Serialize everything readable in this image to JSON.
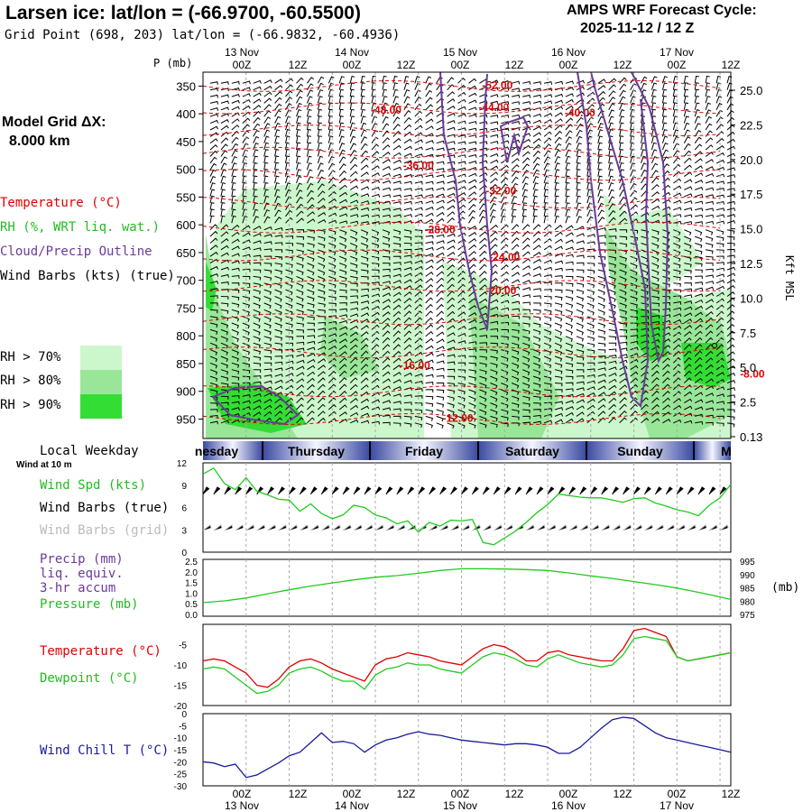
{
  "header": {
    "title": "Larsen ice:  lat/lon = (-66.9700, -60.5500)",
    "grid_point": "Grid Point (698, 203) lat/lon = (-66.9832, -60.4936)",
    "cycle_line1": "AMPS WRF Forecast Cycle:",
    "cycle_line2": "2025-11-12 / 12  Z"
  },
  "left_panel": {
    "model_grid_label": "Model Grid ΔX:",
    "model_grid_value": "8.000 km",
    "legend_temperature": "Temperature (°C)",
    "legend_rh": "RH (%, WRT liq. wat.)",
    "legend_cloud": "Cloud/Precip Outline",
    "legend_wind": "Wind Barbs (kts) (true)",
    "rh_70": "RH > 70%",
    "rh_80": "RH > 80%",
    "rh_90": "RH > 90%"
  },
  "colors": {
    "temperature": "#e00000",
    "rh": "#22bb22",
    "cloud": "#6a3a9a",
    "rh70": "#ccf7cc",
    "rh80": "#99e699",
    "rh90": "#33dd33",
    "windchill": "#1a1a9a",
    "dewpoint": "#1fcc1f"
  },
  "time_axis": {
    "top_dates": [
      "13 Nov",
      "14 Nov",
      "15 Nov",
      "16 Nov",
      "17 Nov"
    ],
    "hour_labels": [
      "00Z",
      "12Z",
      "00Z",
      "12Z",
      "00Z",
      "12Z",
      "00Z",
      "12Z",
      "00Z",
      "12Z"
    ],
    "bottom_dates": [
      "13 Nov",
      "14 Nov",
      "15 Nov",
      "16 Nov",
      "17 Nov"
    ],
    "weekday_header": "Local Weekday",
    "weekdays": [
      "nesday",
      "Thursday",
      "Friday",
      "Saturday",
      "Sunday",
      "M"
    ]
  },
  "chart_data": [
    {
      "type": "area",
      "name": "sounding-panel",
      "ylabel_left": "P (mb)",
      "ylabel_right": "Kft MSL",
      "pressure_ticks": [
        350,
        400,
        450,
        500,
        550,
        600,
        650,
        700,
        750,
        800,
        850,
        900,
        950
      ],
      "height_ticks": [
        "25.0",
        "22.5",
        "20.0",
        "17.5",
        "15.0",
        "12.5",
        "10.0",
        "7.5",
        "5.0",
        "2.5",
        "0.13"
      ],
      "isotherm_labels": [
        {
          "text": "-52.00",
          "hour": 82,
          "p": 355
        },
        {
          "text": "-44.00",
          "hour": 81,
          "p": 395
        },
        {
          "text": "-48.00",
          "hour": 51,
          "p": 400
        },
        {
          "text": "-40.00",
          "hour": 105,
          "p": 405
        },
        {
          "text": "-36.00",
          "hour": 60,
          "p": 500
        },
        {
          "text": "-32.00",
          "hour": 83,
          "p": 545
        },
        {
          "text": "-28.00",
          "hour": 66,
          "p": 615
        },
        {
          "text": "-24.00",
          "hour": 84,
          "p": 665
        },
        {
          "text": "-20.00",
          "hour": 83,
          "p": 725
        },
        {
          "text": "-16.00",
          "hour": 59,
          "p": 860
        },
        {
          "text": "-12.00",
          "hour": 71,
          "p": 955
        },
        {
          "text": "-8.00",
          "hour": 153,
          "p": 875
        }
      ]
    },
    {
      "type": "line",
      "name": "wind-panel",
      "left_labels": [
        "Wind Spd (kts)",
        "Wind Barbs (true)",
        "Wind Barbs (grid)"
      ],
      "sub_label": "Wind at 10 m",
      "ylim": [
        0,
        12
      ],
      "yticks": [
        0,
        3,
        6,
        9,
        12
      ],
      "hours": [
        0,
        3,
        6,
        9,
        12,
        15,
        18,
        21,
        24,
        27,
        30,
        33,
        36,
        39,
        42,
        45,
        48,
        51,
        54,
        57,
        60,
        63,
        66,
        69,
        72,
        75,
        78,
        81,
        84,
        87,
        90,
        93,
        96,
        99,
        102,
        105,
        108,
        111,
        114,
        117,
        120,
        123,
        126,
        129,
        132,
        135,
        138,
        141,
        144,
        147
      ],
      "speed": [
        10.5,
        11.3,
        9.2,
        8.4,
        10.0,
        8.2,
        7.7,
        7.1,
        7.0,
        5.5,
        6.5,
        5.2,
        4.5,
        5.0,
        6.3,
        6.0,
        5.0,
        4.6,
        3.8,
        4.2,
        2.7,
        4.0,
        3.5,
        4.3,
        4.2,
        4.4,
        1.3,
        1.0,
        1.9,
        2.8,
        4.0,
        5.3,
        6.4,
        7.8,
        7.6,
        7.4,
        7.3,
        7.3,
        7.0,
        6.7,
        7.2,
        7.3,
        6.6,
        6.2,
        5.7,
        5.4,
        4.9,
        6.3,
        7.3,
        9.1
      ]
    },
    {
      "type": "line",
      "name": "pressure-panel",
      "left_labels": [
        "Precip (mm)",
        "liq. equiv.",
        "3-hr accum",
        "Pressure (mb)"
      ],
      "left_ticks": [
        "2.5",
        "2.0",
        "1.5",
        "1.0",
        "0.5",
        "0.0"
      ],
      "right_ticks": [
        "995",
        "990",
        "985",
        "980",
        "975"
      ],
      "right_unit": "(mb)",
      "precip_ylim": [
        0,
        2.5
      ],
      "pressure_ylim": [
        975,
        995
      ],
      "hours": [
        0,
        6,
        12,
        18,
        24,
        30,
        36,
        42,
        48,
        54,
        60,
        66,
        72,
        78,
        84,
        90,
        96,
        102,
        108,
        114,
        120,
        126,
        132,
        138,
        144,
        147
      ],
      "pressure": [
        979.8,
        980.4,
        981.4,
        982.9,
        984.3,
        985.6,
        986.7,
        987.8,
        988.7,
        989.3,
        990.1,
        991.1,
        991.7,
        991.7,
        991.6,
        991.4,
        991.1,
        990.2,
        989.2,
        988.3,
        987.2,
        986.1,
        984.9,
        983.4,
        981.8,
        980.9
      ]
    },
    {
      "type": "line",
      "name": "temperature-panel",
      "left_labels": [
        "Temperature (°C)",
        "Dewpoint (°C)"
      ],
      "ylim": [
        -20,
        0
      ],
      "yticks": [
        -5,
        -10,
        -15,
        -20
      ],
      "hours": [
        0,
        3,
        6,
        9,
        12,
        15,
        18,
        21,
        24,
        27,
        30,
        33,
        36,
        39,
        42,
        45,
        48,
        51,
        54,
        57,
        60,
        63,
        66,
        69,
        72,
        75,
        78,
        81,
        84,
        87,
        90,
        93,
        96,
        99,
        102,
        105,
        108,
        111,
        114,
        117,
        120,
        123,
        126,
        129,
        132,
        135,
        138,
        141,
        144,
        147
      ],
      "temperature": [
        -9,
        -8.5,
        -9,
        -10.5,
        -12,
        -15,
        -15.5,
        -13.5,
        -10.5,
        -9,
        -8.5,
        -9.5,
        -11,
        -12,
        -13,
        -14,
        -10,
        -8.5,
        -8,
        -7,
        -7.5,
        -8,
        -9,
        -9.5,
        -10,
        -8,
        -6,
        -5,
        -5.5,
        -7,
        -9,
        -9,
        -7,
        -6.5,
        -7.5,
        -8,
        -8.5,
        -9,
        -9,
        -6,
        -1.5,
        -1,
        -2,
        -3,
        -8,
        -9,
        -8.5,
        -8,
        -7.5,
        -7
      ],
      "dewpoint": [
        -11,
        -10.5,
        -11,
        -13,
        -15,
        -17,
        -16.5,
        -15,
        -12,
        -11,
        -10.5,
        -11.5,
        -13,
        -14,
        -14,
        -16,
        -12.5,
        -11,
        -10.5,
        -9.5,
        -10,
        -10,
        -11,
        -11.5,
        -12,
        -10,
        -8,
        -7,
        -7.5,
        -8.5,
        -10,
        -10.5,
        -8.5,
        -7.5,
        -8.5,
        -9.5,
        -10,
        -10.5,
        -10,
        -7.5,
        -3.5,
        -3,
        -3.5,
        -4,
        -8,
        -9,
        -8.5,
        -8,
        -7.5,
        -7
      ]
    },
    {
      "type": "line",
      "name": "windchill-panel",
      "left_labels": [
        "Wind Chill T (°C)"
      ],
      "ylim": [
        -30,
        0
      ],
      "yticks": [
        0,
        -5,
        -10,
        -15,
        -20,
        -25,
        -30
      ],
      "hours": [
        0,
        3,
        6,
        9,
        12,
        15,
        18,
        21,
        24,
        27,
        30,
        33,
        36,
        39,
        42,
        45,
        48,
        51,
        54,
        57,
        60,
        63,
        66,
        69,
        72,
        75,
        78,
        81,
        84,
        87,
        90,
        93,
        96,
        99,
        102,
        105,
        108,
        111,
        114,
        117,
        120,
        123,
        126,
        129,
        132,
        135,
        138,
        141,
        144,
        147
      ],
      "windchill": [
        -20,
        -20.5,
        -22,
        -21,
        -26.5,
        -25.5,
        -23,
        -20.5,
        -17.5,
        -16,
        -12,
        -8,
        -12,
        -11.5,
        -12.5,
        -16,
        -13,
        -11,
        -10,
        -8.5,
        -7.5,
        -8.5,
        -9,
        -10,
        -11,
        -11.5,
        -12,
        -12.5,
        -13,
        -12.5,
        -12.5,
        -13,
        -14,
        -16.5,
        -16.5,
        -14,
        -10,
        -6,
        -2.5,
        -1.5,
        -2,
        -5,
        -8,
        -10,
        -11,
        -12,
        -13,
        -14,
        -15,
        -16
      ]
    }
  ]
}
